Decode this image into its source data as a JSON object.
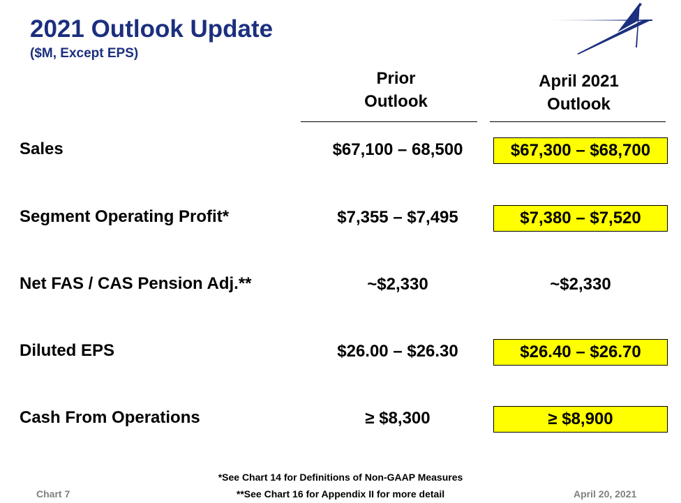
{
  "header": {
    "title": "2021 Outlook Update",
    "subtitle": "($M, Except EPS)"
  },
  "columns": {
    "prior": [
      "Prior",
      "Outlook"
    ],
    "april": [
      "April 2021",
      "Outlook"
    ]
  },
  "rows": [
    {
      "label": "Sales",
      "prior": "$67,100 – 68,500",
      "april": "$67,300 – $68,700",
      "highlighted": true
    },
    {
      "label": "Segment Operating Profit*",
      "prior": "$7,355 – $7,495",
      "april": "$7,380 – $7,520",
      "highlighted": true
    },
    {
      "label": "Net FAS / CAS Pension Adj.**",
      "prior": "~$2,330",
      "april": "~$2,330",
      "highlighted": false
    },
    {
      "label": "Diluted EPS",
      "prior": "$26.00 – $26.30",
      "april": "$26.40 – $26.70",
      "highlighted": true
    },
    {
      "label": "Cash From Operations",
      "prior": "≥ $8,300",
      "april": "≥ $8,900",
      "highlighted": true
    }
  ],
  "footer": {
    "note1": "*See Chart 14 for Definitions of Non-GAAP Measures",
    "note2": "**See Chart 16 for Appendix II for more detail",
    "chart": "Chart 7",
    "date": "April 20, 2021"
  },
  "colors": {
    "title": "#1b2f7e",
    "highlight": "#ffff00"
  }
}
